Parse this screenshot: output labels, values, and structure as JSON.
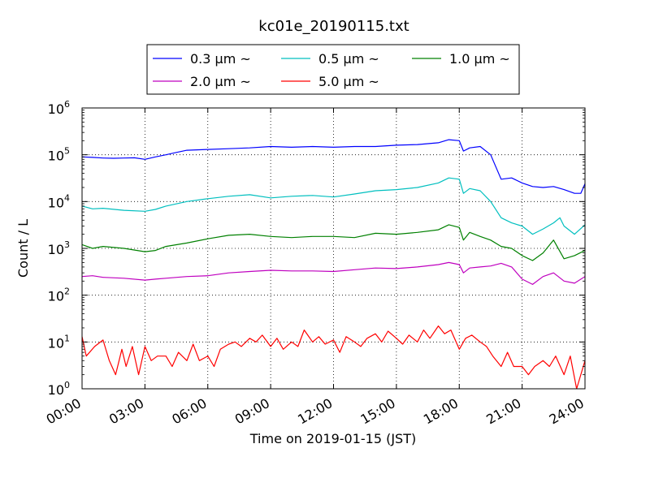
{
  "chart_data": {
    "type": "line",
    "title": "kc01e_20190115.txt",
    "xlabel": "Time on 2019-01-15 (JST)",
    "ylabel": "Count / L",
    "x_unit": "hours",
    "xlim": [
      0,
      24
    ],
    "ylim": [
      1,
      1000000
    ],
    "yscale": "log",
    "grid": true,
    "legend_position": "top-center, above plot",
    "x_ticks": [
      {
        "x": 0,
        "label": "00:00"
      },
      {
        "x": 3,
        "label": "03:00"
      },
      {
        "x": 6,
        "label": "06:00"
      },
      {
        "x": 9,
        "label": "09:00"
      },
      {
        "x": 12,
        "label": "12:00"
      },
      {
        "x": 15,
        "label": "15:00"
      },
      {
        "x": 18,
        "label": "18:00"
      },
      {
        "x": 21,
        "label": "21:00"
      },
      {
        "x": 24,
        "label": "24:00"
      }
    ],
    "y_ticks": [
      {
        "value": 1,
        "base": "10",
        "exp": "0"
      },
      {
        "value": 10,
        "base": "10",
        "exp": "1"
      },
      {
        "value": 100,
        "base": "10",
        "exp": "2"
      },
      {
        "value": 1000,
        "base": "10",
        "exp": "3"
      },
      {
        "value": 10000,
        "base": "10",
        "exp": "4"
      },
      {
        "value": 100000,
        "base": "10",
        "exp": "5"
      },
      {
        "value": 1000000,
        "base": "10",
        "exp": "6"
      }
    ],
    "series": [
      {
        "name": "0.3 μm ~",
        "color": "#0000ff",
        "points": [
          [
            0,
            90000
          ],
          [
            0.5,
            88000
          ],
          [
            1,
            85000
          ],
          [
            1.5,
            84000
          ],
          [
            2,
            85000
          ],
          [
            2.5,
            86000
          ],
          [
            3,
            80000
          ],
          [
            3.5,
            90000
          ],
          [
            4,
            100000
          ],
          [
            4.5,
            112000
          ],
          [
            5,
            125000
          ],
          [
            6,
            130000
          ],
          [
            7,
            135000
          ],
          [
            8,
            140000
          ],
          [
            9,
            150000
          ],
          [
            10,
            145000
          ],
          [
            11,
            150000
          ],
          [
            12,
            145000
          ],
          [
            13,
            150000
          ],
          [
            14,
            150000
          ],
          [
            15,
            160000
          ],
          [
            16,
            165000
          ],
          [
            17,
            180000
          ],
          [
            17.5,
            210000
          ],
          [
            18,
            200000
          ],
          [
            18.2,
            120000
          ],
          [
            18.5,
            140000
          ],
          [
            19,
            150000
          ],
          [
            19.5,
            100000
          ],
          [
            20,
            30000
          ],
          [
            20.5,
            32000
          ],
          [
            21,
            25000
          ],
          [
            21.5,
            21000
          ],
          [
            22,
            20000
          ],
          [
            22.5,
            21000
          ],
          [
            23,
            18000
          ],
          [
            23.5,
            15000
          ],
          [
            23.8,
            15000
          ],
          [
            24,
            24000
          ]
        ]
      },
      {
        "name": "0.5 μm ~",
        "color": "#00bfbf",
        "points": [
          [
            0,
            8000
          ],
          [
            0.5,
            7000
          ],
          [
            1,
            7200
          ],
          [
            2,
            6500
          ],
          [
            3,
            6200
          ],
          [
            3.5,
            6800
          ],
          [
            4,
            8000
          ],
          [
            5,
            10000
          ],
          [
            6,
            11500
          ],
          [
            7,
            13000
          ],
          [
            8,
            14000
          ],
          [
            9,
            12000
          ],
          [
            10,
            13000
          ],
          [
            11,
            13500
          ],
          [
            12,
            12500
          ],
          [
            13,
            14500
          ],
          [
            14,
            17000
          ],
          [
            15,
            18000
          ],
          [
            16,
            20000
          ],
          [
            17,
            25000
          ],
          [
            17.5,
            32000
          ],
          [
            18,
            30000
          ],
          [
            18.2,
            15000
          ],
          [
            18.5,
            19000
          ],
          [
            19,
            17000
          ],
          [
            19.5,
            10000
          ],
          [
            20,
            4500
          ],
          [
            20.5,
            3500
          ],
          [
            21,
            3000
          ],
          [
            21.5,
            2000
          ],
          [
            22,
            2600
          ],
          [
            22.5,
            3500
          ],
          [
            22.8,
            4500
          ],
          [
            23,
            3000
          ],
          [
            23.5,
            2000
          ],
          [
            24,
            3200
          ]
        ]
      },
      {
        "name": "1.0 μm ~",
        "color": "#008000",
        "points": [
          [
            0,
            1200
          ],
          [
            0.5,
            1000
          ],
          [
            1,
            1100
          ],
          [
            2,
            1000
          ],
          [
            3,
            850
          ],
          [
            3.5,
            900
          ],
          [
            4,
            1100
          ],
          [
            5,
            1300
          ],
          [
            6,
            1600
          ],
          [
            7,
            1900
          ],
          [
            8,
            2000
          ],
          [
            9,
            1800
          ],
          [
            10,
            1700
          ],
          [
            11,
            1800
          ],
          [
            12,
            1800
          ],
          [
            13,
            1700
          ],
          [
            14,
            2100
          ],
          [
            15,
            2000
          ],
          [
            16,
            2200
          ],
          [
            17,
            2500
          ],
          [
            17.5,
            3200
          ],
          [
            18,
            2800
          ],
          [
            18.2,
            1500
          ],
          [
            18.5,
            2200
          ],
          [
            19,
            1800
          ],
          [
            19.5,
            1500
          ],
          [
            20,
            1100
          ],
          [
            20.5,
            1000
          ],
          [
            21,
            700
          ],
          [
            21.5,
            550
          ],
          [
            22,
            800
          ],
          [
            22.5,
            1500
          ],
          [
            23,
            600
          ],
          [
            23.5,
            700
          ],
          [
            24,
            900
          ]
        ]
      },
      {
        "name": "2.0 μm ~",
        "color": "#bf00bf",
        "points": [
          [
            0,
            250
          ],
          [
            0.5,
            260
          ],
          [
            1,
            240
          ],
          [
            2,
            230
          ],
          [
            3,
            210
          ],
          [
            3.5,
            220
          ],
          [
            4,
            230
          ],
          [
            5,
            250
          ],
          [
            6,
            260
          ],
          [
            7,
            300
          ],
          [
            8,
            320
          ],
          [
            9,
            340
          ],
          [
            10,
            330
          ],
          [
            11,
            330
          ],
          [
            12,
            320
          ],
          [
            13,
            350
          ],
          [
            14,
            380
          ],
          [
            15,
            370
          ],
          [
            16,
            400
          ],
          [
            17,
            450
          ],
          [
            17.5,
            500
          ],
          [
            18,
            450
          ],
          [
            18.2,
            300
          ],
          [
            18.5,
            380
          ],
          [
            19,
            400
          ],
          [
            19.5,
            420
          ],
          [
            20,
            480
          ],
          [
            20.5,
            400
          ],
          [
            21,
            220
          ],
          [
            21.5,
            170
          ],
          [
            22,
            250
          ],
          [
            22.5,
            300
          ],
          [
            23,
            200
          ],
          [
            23.5,
            180
          ],
          [
            24,
            250
          ]
        ]
      },
      {
        "name": "5.0 μm ~",
        "color": "#ff0000",
        "points": [
          [
            0,
            13
          ],
          [
            0.2,
            5
          ],
          [
            0.6,
            8
          ],
          [
            1,
            11
          ],
          [
            1.3,
            4
          ],
          [
            1.6,
            2
          ],
          [
            1.9,
            7
          ],
          [
            2.1,
            3
          ],
          [
            2.4,
            8
          ],
          [
            2.7,
            2
          ],
          [
            3,
            8
          ],
          [
            3.3,
            4
          ],
          [
            3.6,
            5
          ],
          [
            4,
            5
          ],
          [
            4.3,
            3
          ],
          [
            4.6,
            6
          ],
          [
            5,
            4
          ],
          [
            5.3,
            9
          ],
          [
            5.6,
            4
          ],
          [
            6,
            5
          ],
          [
            6.3,
            3
          ],
          [
            6.6,
            7
          ],
          [
            7,
            9
          ],
          [
            7.3,
            10
          ],
          [
            7.6,
            8
          ],
          [
            8,
            12
          ],
          [
            8.3,
            10
          ],
          [
            8.6,
            14
          ],
          [
            9,
            8
          ],
          [
            9.3,
            12
          ],
          [
            9.6,
            7
          ],
          [
            10,
            10
          ],
          [
            10.3,
            8
          ],
          [
            10.6,
            18
          ],
          [
            11,
            10
          ],
          [
            11.3,
            13
          ],
          [
            11.6,
            9
          ],
          [
            12,
            11
          ],
          [
            12.3,
            6
          ],
          [
            12.6,
            13
          ],
          [
            13,
            10
          ],
          [
            13.3,
            8
          ],
          [
            13.6,
            12
          ],
          [
            14,
            15
          ],
          [
            14.3,
            10
          ],
          [
            14.6,
            17
          ],
          [
            15,
            12
          ],
          [
            15.3,
            9
          ],
          [
            15.6,
            14
          ],
          [
            16,
            10
          ],
          [
            16.3,
            18
          ],
          [
            16.6,
            12
          ],
          [
            17,
            22
          ],
          [
            17.3,
            15
          ],
          [
            17.6,
            18
          ],
          [
            18,
            7
          ],
          [
            18.3,
            12
          ],
          [
            18.6,
            14
          ],
          [
            19,
            10
          ],
          [
            19.3,
            8
          ],
          [
            19.6,
            5
          ],
          [
            20,
            3
          ],
          [
            20.3,
            6
          ],
          [
            20.6,
            3
          ],
          [
            21,
            3
          ],
          [
            21.3,
            2
          ],
          [
            21.6,
            3
          ],
          [
            22,
            4
          ],
          [
            22.3,
            3
          ],
          [
            22.6,
            5
          ],
          [
            23,
            2
          ],
          [
            23.3,
            5
          ],
          [
            23.6,
            1
          ],
          [
            24,
            4
          ]
        ]
      }
    ]
  }
}
